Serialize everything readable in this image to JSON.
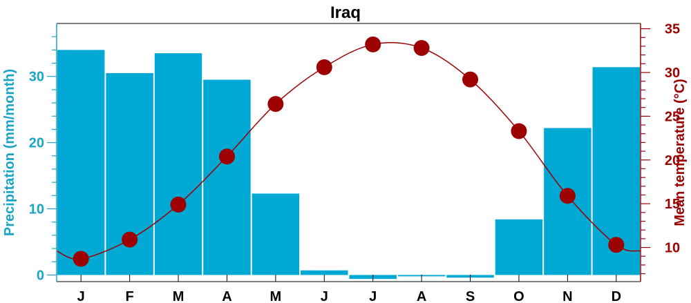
{
  "chart_data": {
    "type": "bar+line",
    "title": "Iraq",
    "categories": [
      "J",
      "F",
      "M",
      "A",
      "M",
      "J",
      "J",
      "A",
      "S",
      "O",
      "N",
      "D"
    ],
    "series": [
      {
        "name": "Precipitation (mm/month)",
        "type": "bar",
        "axis": "left",
        "color": "#00a8d4",
        "values": [
          34.0,
          30.5,
          33.5,
          29.5,
          12.3,
          0.7,
          -0.6,
          -0.2,
          -0.4,
          8.4,
          22.2,
          31.4
        ]
      },
      {
        "name": "Mean temperature (°C)",
        "type": "line",
        "axis": "right",
        "color": "#9c0000",
        "values": [
          8.7,
          10.9,
          14.9,
          20.4,
          26.4,
          30.6,
          33.2,
          32.8,
          29.2,
          23.3,
          15.9,
          10.3
        ]
      }
    ],
    "ylabel_left": "Precipitation (mm/month)",
    "ylabel_right": "Mean temperature (°C)",
    "ylim_left": [
      -1,
      38
    ],
    "ylim_right": [
      6.1,
      35.6
    ],
    "yticks_left": [
      0,
      10,
      20,
      30
    ],
    "yticks_right": [
      10,
      15,
      20,
      25,
      30,
      35
    ],
    "left_axis_color": "#1aa4c8",
    "right_axis_color": "#9c0000",
    "temp_start": 9.6,
    "temp_end": 9.6,
    "grid": false,
    "legend": "none"
  }
}
